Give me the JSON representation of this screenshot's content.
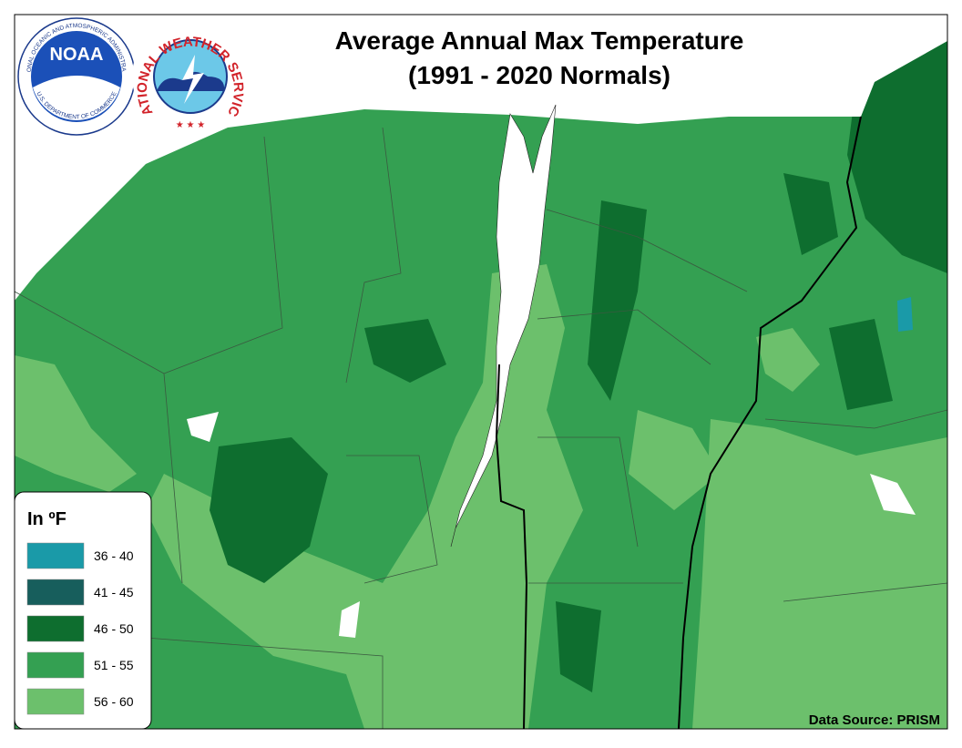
{
  "header": {
    "title_line1": "Average Annual Max Temperature",
    "title_line2": "(1991 - 2020 Normals)"
  },
  "logos": {
    "noaa": "NOAA",
    "noaa_ring_top": "NATIONAL OCEANIC AND ATMOSPHERIC ADMINISTRATION",
    "noaa_ring_bottom": "U.S. DEPARTMENT OF COMMERCE",
    "nws_ring": "NATIONAL WEATHER SERVICE"
  },
  "legend": {
    "title": "In ºF",
    "items": [
      {
        "label": "36 - 40",
        "color": "#1a9aa8"
      },
      {
        "label": "41 - 45",
        "color": "#175e5c"
      },
      {
        "label": "46 - 50",
        "color": "#0e6e2f"
      },
      {
        "label": "51 - 55",
        "color": "#34a052"
      },
      {
        "label": "56 - 60",
        "color": "#6cc06c"
      }
    ]
  },
  "footer": {
    "source": "Data Source: PRISM"
  }
}
